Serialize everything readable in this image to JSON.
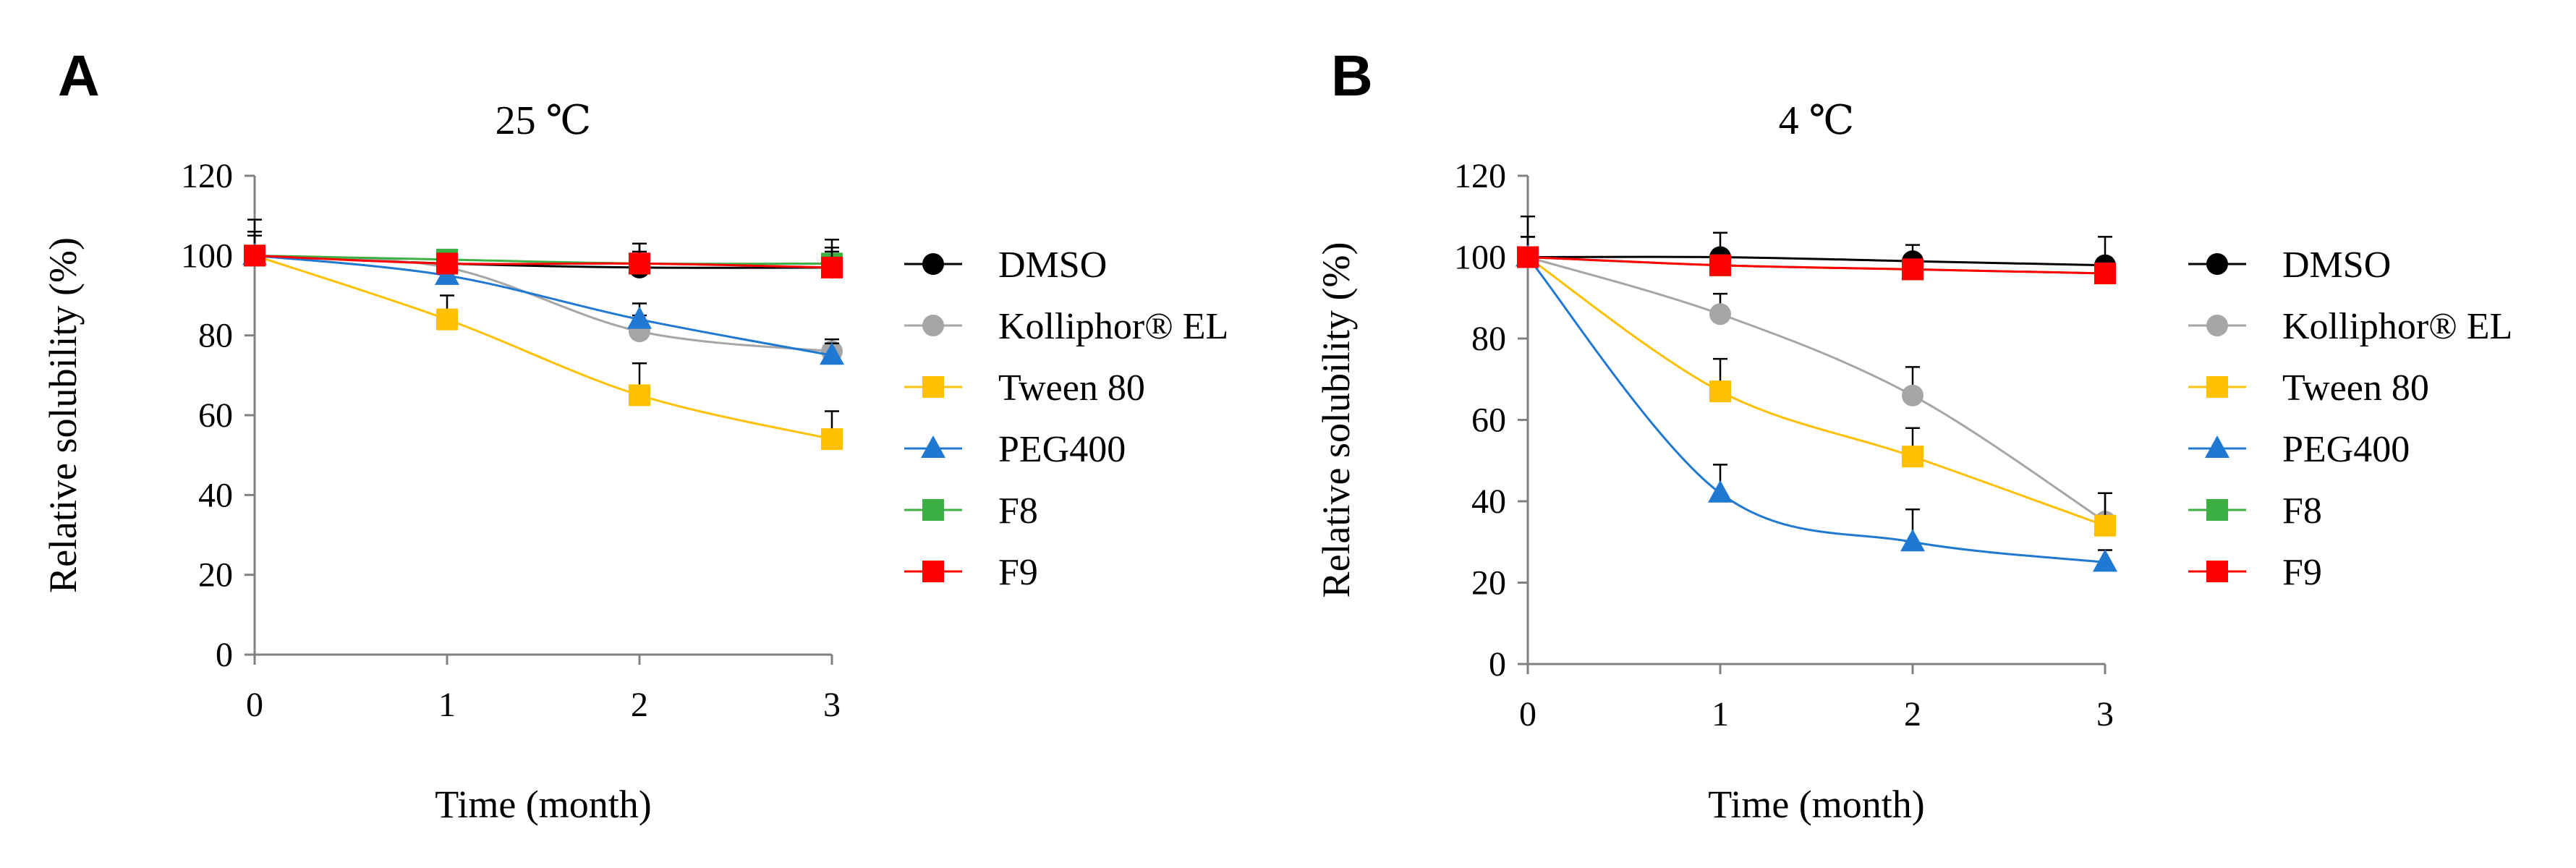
{
  "chart_data": [
    {
      "type": "line",
      "panel": "A",
      "title": "25 ℃",
      "xlabel": "Time (month)",
      "ylabel": "Relative solubility (%)",
      "x": [
        0,
        1,
        2,
        3
      ],
      "x_ticks": [
        "0",
        "1",
        "2",
        "3"
      ],
      "y_ticks": [
        "0",
        "20",
        "40",
        "60",
        "80",
        "100",
        "120"
      ],
      "xlim": [
        0,
        3
      ],
      "ylim": [
        0,
        120
      ],
      "grid": false,
      "legend_position": "right",
      "series": [
        {
          "name": "DMSO",
          "marker": "circle",
          "color": "#000000",
          "values": [
            100,
            98,
            97,
            97
          ],
          "errors": [
            9,
            2,
            6,
            7
          ]
        },
        {
          "name": "Kolliphor® EL",
          "marker": "circle",
          "color": "#a6a6a6",
          "values": [
            100,
            97,
            81,
            76
          ],
          "errors": [
            6,
            2,
            4,
            3
          ]
        },
        {
          "name": "Tween 80",
          "marker": "square",
          "color": "#ffc000",
          "values": [
            100,
            84,
            65,
            54
          ],
          "errors": [
            5,
            6,
            8,
            7
          ]
        },
        {
          "name": "PEG400",
          "marker": "triangle",
          "color": "#1f78d1",
          "values": [
            100,
            95,
            84,
            75
          ],
          "errors": [
            5,
            2,
            4,
            3
          ]
        },
        {
          "name": "F8",
          "marker": "square",
          "color": "#3cb043",
          "values": [
            100,
            99,
            98,
            98
          ],
          "errors": [
            2,
            2,
            3,
            3
          ]
        },
        {
          "name": "F9",
          "marker": "square",
          "color": "#ff0000",
          "values": [
            100,
            98,
            98,
            97
          ],
          "errors": [
            2,
            2,
            5,
            5
          ]
        }
      ]
    },
    {
      "type": "line",
      "panel": "B",
      "title": "4 ℃",
      "xlabel": "Time (month)",
      "ylabel": "Relative solubility (%)",
      "x": [
        0,
        1,
        2,
        3
      ],
      "x_ticks": [
        "0",
        "1",
        "2",
        "3"
      ],
      "y_ticks": [
        "0",
        "20",
        "40",
        "60",
        "80",
        "100",
        "120"
      ],
      "xlim": [
        0,
        3
      ],
      "ylim": [
        0,
        120
      ],
      "grid": false,
      "legend_position": "right",
      "series": [
        {
          "name": "DMSO",
          "marker": "circle",
          "color": "#000000",
          "values": [
            100,
            100,
            99,
            98
          ],
          "errors": [
            10,
            6,
            4,
            7
          ]
        },
        {
          "name": "Kolliphor® EL",
          "marker": "circle",
          "color": "#a6a6a6",
          "values": [
            100,
            86,
            66,
            35
          ],
          "errors": [
            5,
            5,
            7,
            7
          ]
        },
        {
          "name": "Tween 80",
          "marker": "square",
          "color": "#ffc000",
          "values": [
            100,
            67,
            51,
            34
          ],
          "errors": [
            5,
            8,
            7,
            8
          ]
        },
        {
          "name": "PEG400",
          "marker": "triangle",
          "color": "#1f78d1",
          "values": [
            100,
            42,
            30,
            25
          ],
          "errors": [
            5,
            7,
            8,
            3
          ]
        },
        {
          "name": "F8",
          "marker": "square",
          "color": "#3cb043",
          "values": [
            100,
            98,
            97,
            96
          ],
          "errors": [
            2,
            2,
            2,
            2
          ]
        },
        {
          "name": "F9",
          "marker": "square",
          "color": "#ff0000",
          "values": [
            100,
            98,
            97,
            96
          ],
          "errors": [
            2,
            2,
            2,
            2
          ]
        }
      ]
    }
  ]
}
